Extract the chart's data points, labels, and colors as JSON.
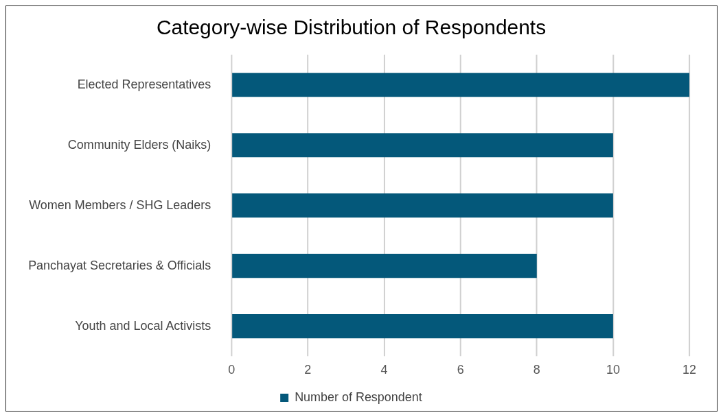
{
  "chart_data": {
    "type": "bar",
    "orientation": "horizontal",
    "title": "Category-wise Distribution of Respondents",
    "categories": [
      "Elected Representatives",
      "Community Elders (Naiks)",
      "Women Members / SHG Leaders",
      "Panchayat Secretaries & Officials",
      "Youth and Local Activists"
    ],
    "series": [
      {
        "name": "Number of Respondent",
        "color": "#04587a",
        "values": [
          12,
          10,
          10,
          8,
          10
        ]
      }
    ],
    "xlim": [
      0,
      12
    ],
    "xticks": [
      0,
      2,
      4,
      6,
      8,
      10,
      12
    ],
    "grid": "x",
    "legend": "bottom"
  }
}
